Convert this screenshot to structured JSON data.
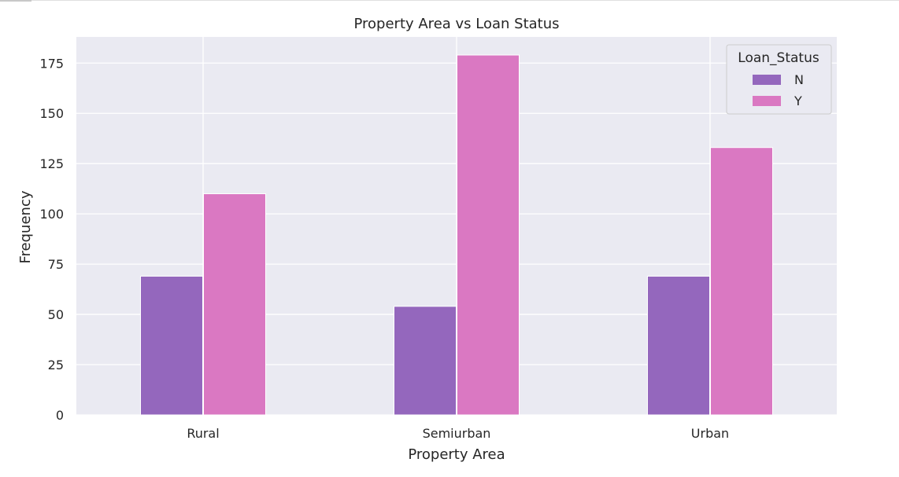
{
  "chart_data": {
    "type": "bar",
    "title": "Property Area vs Loan Status",
    "xlabel": "Property Area",
    "ylabel": "Frequency",
    "categories": [
      "Rural",
      "Semiurban",
      "Urban"
    ],
    "series": [
      {
        "name": "N",
        "values": [
          69,
          54,
          69
        ],
        "color": "#9467bd"
      },
      {
        "name": "Y",
        "values": [
          110,
          179,
          133
        ],
        "color": "#da78c2"
      }
    ],
    "ylim": [
      0,
      188
    ],
    "yticks": [
      0,
      25,
      50,
      75,
      100,
      125,
      150,
      175
    ],
    "grid": true,
    "legend": {
      "title": "Loan_Status",
      "placement": "top-right"
    },
    "style": {
      "plot_background": "#eaeaf2",
      "grid_color": "#ffffff",
      "text_color": "#262626"
    }
  }
}
